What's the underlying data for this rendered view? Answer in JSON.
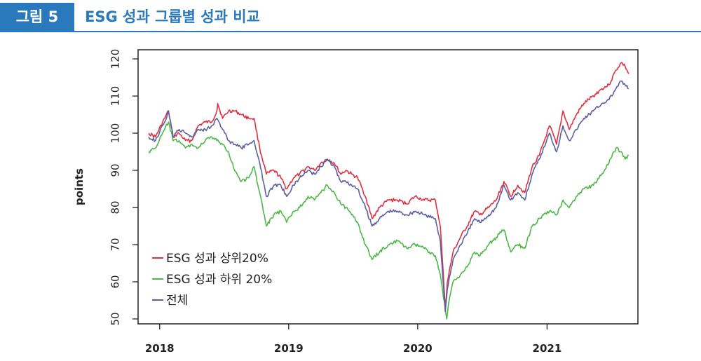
{
  "figure": {
    "label": "그림 5",
    "title": "ESG 성과 그룹별 성과 비교"
  },
  "chart_data": {
    "type": "line",
    "title": "",
    "xlabel": "",
    "ylabel": "points",
    "xlim": [
      "2017-11-01",
      "2021-09-15"
    ],
    "ylim": [
      50,
      120
    ],
    "yticks": [
      50,
      60,
      70,
      80,
      90,
      100,
      110,
      120
    ],
    "xticks": [
      {
        "label": "2018",
        "date": "2018-01-01"
      },
      {
        "label": "2019",
        "date": "2019-01-01"
      },
      {
        "label": "2020",
        "date": "2020-01-01"
      },
      {
        "label": "2021",
        "date": "2021-01-01"
      }
    ],
    "grid": false,
    "legend": "bottom-left",
    "series": [
      {
        "name": "ESG 성과 상위20%",
        "color": "#e03040",
        "points": [
          [
            "2017-12-01",
            100
          ],
          [
            "2017-12-20",
            99
          ],
          [
            "2018-01-15",
            104
          ],
          [
            "2018-01-26",
            106
          ],
          [
            "2018-02-08",
            99
          ],
          [
            "2018-02-25",
            100
          ],
          [
            "2018-03-15",
            98
          ],
          [
            "2018-04-02",
            98
          ],
          [
            "2018-04-20",
            102
          ],
          [
            "2018-05-10",
            103
          ],
          [
            "2018-05-28",
            103
          ],
          [
            "2018-06-12",
            106
          ],
          [
            "2018-06-14",
            108
          ],
          [
            "2018-06-28",
            104
          ],
          [
            "2018-07-15",
            106
          ],
          [
            "2018-08-01",
            106
          ],
          [
            "2018-08-20",
            105
          ],
          [
            "2018-09-10",
            104
          ],
          [
            "2018-09-25",
            104
          ],
          [
            "2018-10-11",
            96
          ],
          [
            "2018-10-30",
            89
          ],
          [
            "2018-11-20",
            90
          ],
          [
            "2018-12-10",
            88
          ],
          [
            "2018-12-26",
            85
          ],
          [
            "2019-01-15",
            88
          ],
          [
            "2019-02-01",
            89
          ],
          [
            "2019-02-25",
            91
          ],
          [
            "2019-03-15",
            90
          ],
          [
            "2019-04-02",
            92
          ],
          [
            "2019-04-20",
            93
          ],
          [
            "2019-05-10",
            92
          ],
          [
            "2019-05-28",
            89
          ],
          [
            "2019-06-12",
            90
          ],
          [
            "2019-06-28",
            89
          ],
          [
            "2019-07-15",
            88
          ],
          [
            "2019-08-06",
            83
          ],
          [
            "2019-08-25",
            77
          ],
          [
            "2019-09-15",
            80
          ],
          [
            "2019-10-10",
            82
          ],
          [
            "2019-11-05",
            82
          ],
          [
            "2019-12-01",
            81
          ],
          [
            "2019-12-25",
            83
          ],
          [
            "2020-01-20",
            82
          ],
          [
            "2020-02-20",
            82
          ],
          [
            "2020-03-05",
            75
          ],
          [
            "2020-03-19",
            53
          ],
          [
            "2020-03-25",
            60
          ],
          [
            "2020-04-10",
            68
          ],
          [
            "2020-05-01",
            72
          ],
          [
            "2020-05-20",
            75
          ],
          [
            "2020-06-10",
            79
          ],
          [
            "2020-06-25",
            78
          ],
          [
            "2020-07-20",
            80
          ],
          [
            "2020-08-10",
            82
          ],
          [
            "2020-09-01",
            87
          ],
          [
            "2020-09-20",
            83
          ],
          [
            "2020-10-10",
            86
          ],
          [
            "2020-10-30",
            84
          ],
          [
            "2020-11-20",
            91
          ],
          [
            "2020-12-10",
            94
          ],
          [
            "2021-01-08",
            102
          ],
          [
            "2021-01-28",
            97
          ],
          [
            "2021-02-15",
            106
          ],
          [
            "2021-03-05",
            101
          ],
          [
            "2021-03-25",
            105
          ],
          [
            "2021-04-15",
            108
          ],
          [
            "2021-05-12",
            110
          ],
          [
            "2021-06-05",
            112
          ],
          [
            "2021-06-25",
            113
          ],
          [
            "2021-07-15",
            117
          ],
          [
            "2021-07-30",
            119
          ],
          [
            "2021-08-10",
            118
          ],
          [
            "2021-08-20",
            116
          ]
        ]
      },
      {
        "name": "ESG 성과 하위 20%",
        "color": "#4cb848",
        "points": [
          [
            "2017-12-01",
            95
          ],
          [
            "2017-12-20",
            96
          ],
          [
            "2018-01-15",
            101
          ],
          [
            "2018-01-26",
            103
          ],
          [
            "2018-02-08",
            98
          ],
          [
            "2018-02-25",
            98
          ],
          [
            "2018-03-15",
            96
          ],
          [
            "2018-04-02",
            97
          ],
          [
            "2018-04-20",
            96
          ],
          [
            "2018-05-10",
            98
          ],
          [
            "2018-05-28",
            99
          ],
          [
            "2018-06-12",
            98
          ],
          [
            "2018-06-28",
            97
          ],
          [
            "2018-07-15",
            95
          ],
          [
            "2018-08-01",
            90
          ],
          [
            "2018-08-20",
            87
          ],
          [
            "2018-09-10",
            88
          ],
          [
            "2018-09-25",
            91
          ],
          [
            "2018-10-11",
            84
          ],
          [
            "2018-10-30",
            75
          ],
          [
            "2018-11-20",
            78
          ],
          [
            "2018-12-10",
            79
          ],
          [
            "2018-12-26",
            76
          ],
          [
            "2019-01-15",
            79
          ],
          [
            "2019-02-01",
            80
          ],
          [
            "2019-02-25",
            83
          ],
          [
            "2019-03-15",
            82
          ],
          [
            "2019-04-02",
            84
          ],
          [
            "2019-04-20",
            86
          ],
          [
            "2019-05-10",
            84
          ],
          [
            "2019-05-28",
            81
          ],
          [
            "2019-06-12",
            80
          ],
          [
            "2019-06-28",
            78
          ],
          [
            "2019-07-15",
            76
          ],
          [
            "2019-08-06",
            70
          ],
          [
            "2019-08-25",
            66
          ],
          [
            "2019-09-15",
            68
          ],
          [
            "2019-10-10",
            70
          ],
          [
            "2019-11-05",
            71
          ],
          [
            "2019-12-01",
            69
          ],
          [
            "2019-12-25",
            70
          ],
          [
            "2020-01-20",
            69
          ],
          [
            "2020-02-20",
            67
          ],
          [
            "2020-03-05",
            62
          ],
          [
            "2020-03-23",
            50
          ],
          [
            "2020-03-30",
            55
          ],
          [
            "2020-04-10",
            60
          ],
          [
            "2020-05-01",
            62
          ],
          [
            "2020-05-20",
            64
          ],
          [
            "2020-06-10",
            68
          ],
          [
            "2020-06-25",
            67
          ],
          [
            "2020-07-20",
            70
          ],
          [
            "2020-08-10",
            72
          ],
          [
            "2020-09-01",
            74
          ],
          [
            "2020-09-20",
            68
          ],
          [
            "2020-10-10",
            70
          ],
          [
            "2020-10-30",
            69
          ],
          [
            "2020-11-20",
            75
          ],
          [
            "2020-12-10",
            77
          ],
          [
            "2021-01-08",
            79
          ],
          [
            "2021-01-28",
            78
          ],
          [
            "2021-02-15",
            82
          ],
          [
            "2021-03-05",
            80
          ],
          [
            "2021-03-25",
            83
          ],
          [
            "2021-04-15",
            85
          ],
          [
            "2021-05-12",
            86
          ],
          [
            "2021-06-05",
            89
          ],
          [
            "2021-06-25",
            92
          ],
          [
            "2021-07-15",
            96
          ],
          [
            "2021-07-30",
            95
          ],
          [
            "2021-08-10",
            93
          ],
          [
            "2021-08-20",
            94
          ]
        ]
      },
      {
        "name": "전체",
        "color": "#5a5fa0",
        "points": [
          [
            "2017-12-01",
            99
          ],
          [
            "2017-12-20",
            98
          ],
          [
            "2018-01-15",
            103
          ],
          [
            "2018-01-26",
            106
          ],
          [
            "2018-02-08",
            99
          ],
          [
            "2018-02-25",
            101
          ],
          [
            "2018-03-15",
            100
          ],
          [
            "2018-04-02",
            99
          ],
          [
            "2018-04-20",
            101
          ],
          [
            "2018-05-10",
            101
          ],
          [
            "2018-05-28",
            102
          ],
          [
            "2018-06-12",
            104
          ],
          [
            "2018-06-28",
            101
          ],
          [
            "2018-07-15",
            98
          ],
          [
            "2018-08-01",
            97
          ],
          [
            "2018-08-20",
            96
          ],
          [
            "2018-09-10",
            97
          ],
          [
            "2018-09-25",
            98
          ],
          [
            "2018-10-11",
            92
          ],
          [
            "2018-10-30",
            83
          ],
          [
            "2018-11-20",
            86
          ],
          [
            "2018-12-10",
            86
          ],
          [
            "2018-12-26",
            83
          ],
          [
            "2019-01-15",
            86
          ],
          [
            "2019-02-01",
            88
          ],
          [
            "2019-02-25",
            90
          ],
          [
            "2019-03-15",
            89
          ],
          [
            "2019-04-02",
            91
          ],
          [
            "2019-04-20",
            93
          ],
          [
            "2019-05-10",
            91
          ],
          [
            "2019-05-28",
            87
          ],
          [
            "2019-06-12",
            87
          ],
          [
            "2019-06-28",
            86
          ],
          [
            "2019-07-15",
            85
          ],
          [
            "2019-08-06",
            80
          ],
          [
            "2019-08-25",
            75
          ],
          [
            "2019-09-15",
            77
          ],
          [
            "2019-10-10",
            79
          ],
          [
            "2019-11-05",
            79
          ],
          [
            "2019-12-01",
            78
          ],
          [
            "2019-12-25",
            79
          ],
          [
            "2020-01-20",
            78
          ],
          [
            "2020-02-20",
            77
          ],
          [
            "2020-03-05",
            71
          ],
          [
            "2020-03-19",
            52
          ],
          [
            "2020-03-25",
            58
          ],
          [
            "2020-04-10",
            66
          ],
          [
            "2020-05-01",
            70
          ],
          [
            "2020-05-20",
            73
          ],
          [
            "2020-06-10",
            77
          ],
          [
            "2020-06-25",
            76
          ],
          [
            "2020-07-20",
            78
          ],
          [
            "2020-08-10",
            80
          ],
          [
            "2020-09-01",
            86
          ],
          [
            "2020-09-20",
            82
          ],
          [
            "2020-10-10",
            84
          ],
          [
            "2020-10-30",
            82
          ],
          [
            "2020-11-20",
            89
          ],
          [
            "2020-12-10",
            93
          ],
          [
            "2021-01-08",
            100
          ],
          [
            "2021-01-28",
            95
          ],
          [
            "2021-02-15",
            102
          ],
          [
            "2021-03-05",
            98
          ],
          [
            "2021-03-25",
            101
          ],
          [
            "2021-04-15",
            104
          ],
          [
            "2021-05-12",
            106
          ],
          [
            "2021-06-05",
            108
          ],
          [
            "2021-06-25",
            109
          ],
          [
            "2021-07-15",
            112
          ],
          [
            "2021-07-30",
            114
          ],
          [
            "2021-08-10",
            113
          ],
          [
            "2021-08-20",
            112
          ]
        ]
      }
    ]
  }
}
